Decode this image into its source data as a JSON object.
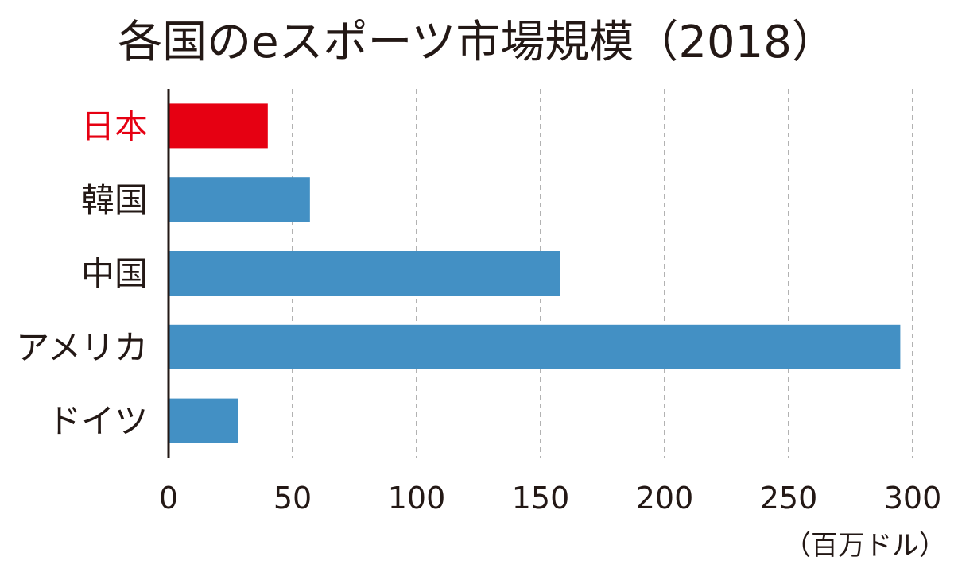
{
  "chart_data": {
    "type": "bar",
    "orientation": "horizontal",
    "title": "各国のeスポーツ市場規模（2018）",
    "unit": "（百万ドル）",
    "categories": [
      "日本",
      "韓国",
      "中国",
      "アメリカ",
      "ドイツ"
    ],
    "values": [
      40,
      57,
      158,
      295,
      28
    ],
    "highlight_category": "日本",
    "xlim": [
      0,
      300
    ],
    "x_ticks": [
      "0",
      "50",
      "100",
      "150",
      "200",
      "250",
      "300"
    ],
    "grid": "vertical dashed",
    "colors": {
      "bar": "#4390c4",
      "highlight": "#e60012",
      "text": "#231815",
      "grid": "#999999",
      "axis": "#231815"
    }
  }
}
